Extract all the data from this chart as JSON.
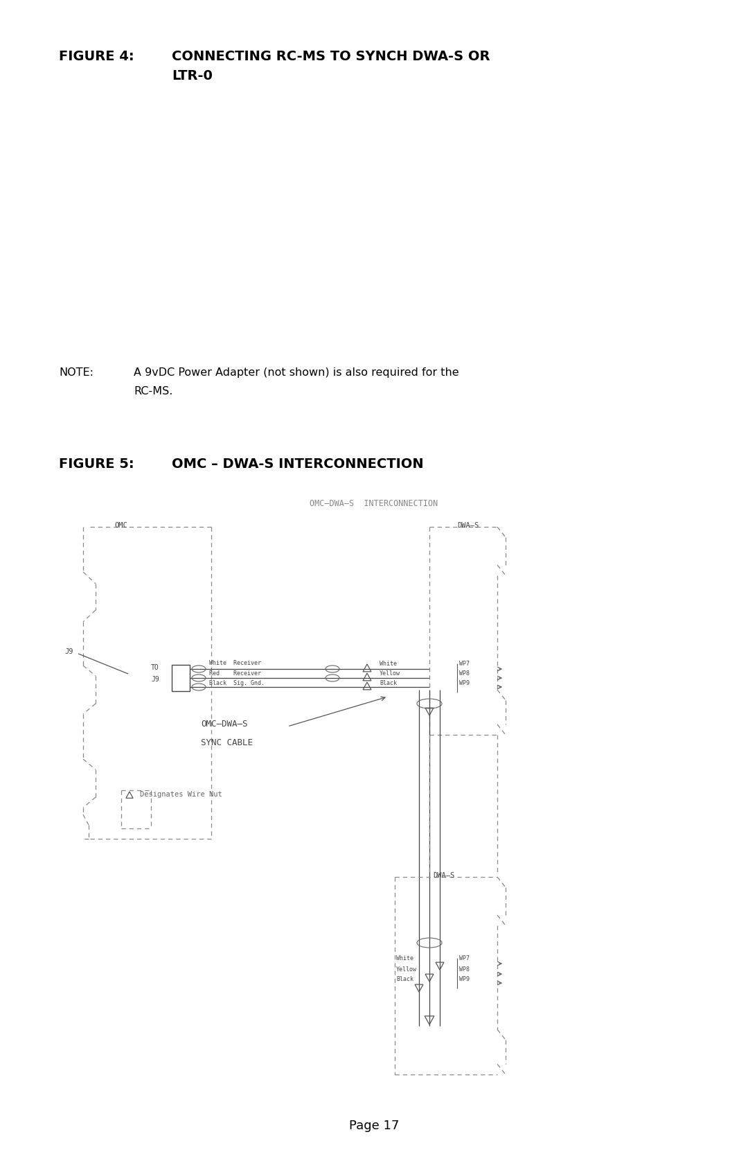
{
  "bg_color": "#ffffff",
  "fig_width": 10.8,
  "fig_height": 16.69,
  "title1_label": "FIGURE 4:",
  "title1_text_line1": "CONNECTING RC-MS TO SYNCH DWA-S OR",
  "title1_text_line2": "LTR-0",
  "note_label": "NOTE:",
  "note_text_line1": "A 9vDC Power Adapter (not shown) is also required for the",
  "note_text_line2": "RC-MS.",
  "title2_label": "FIGURE 5:",
  "title2_text": "OMC – DWA-S INTERCONNECTION",
  "diagram_title": "OMC–DWA–S  INTERCONNECTION",
  "page_label": "Page 17",
  "line_color": "#444444",
  "text_color": "#000000",
  "dash_color": "#777777",
  "wire_color": "#555555",
  "label_color": "#555555"
}
